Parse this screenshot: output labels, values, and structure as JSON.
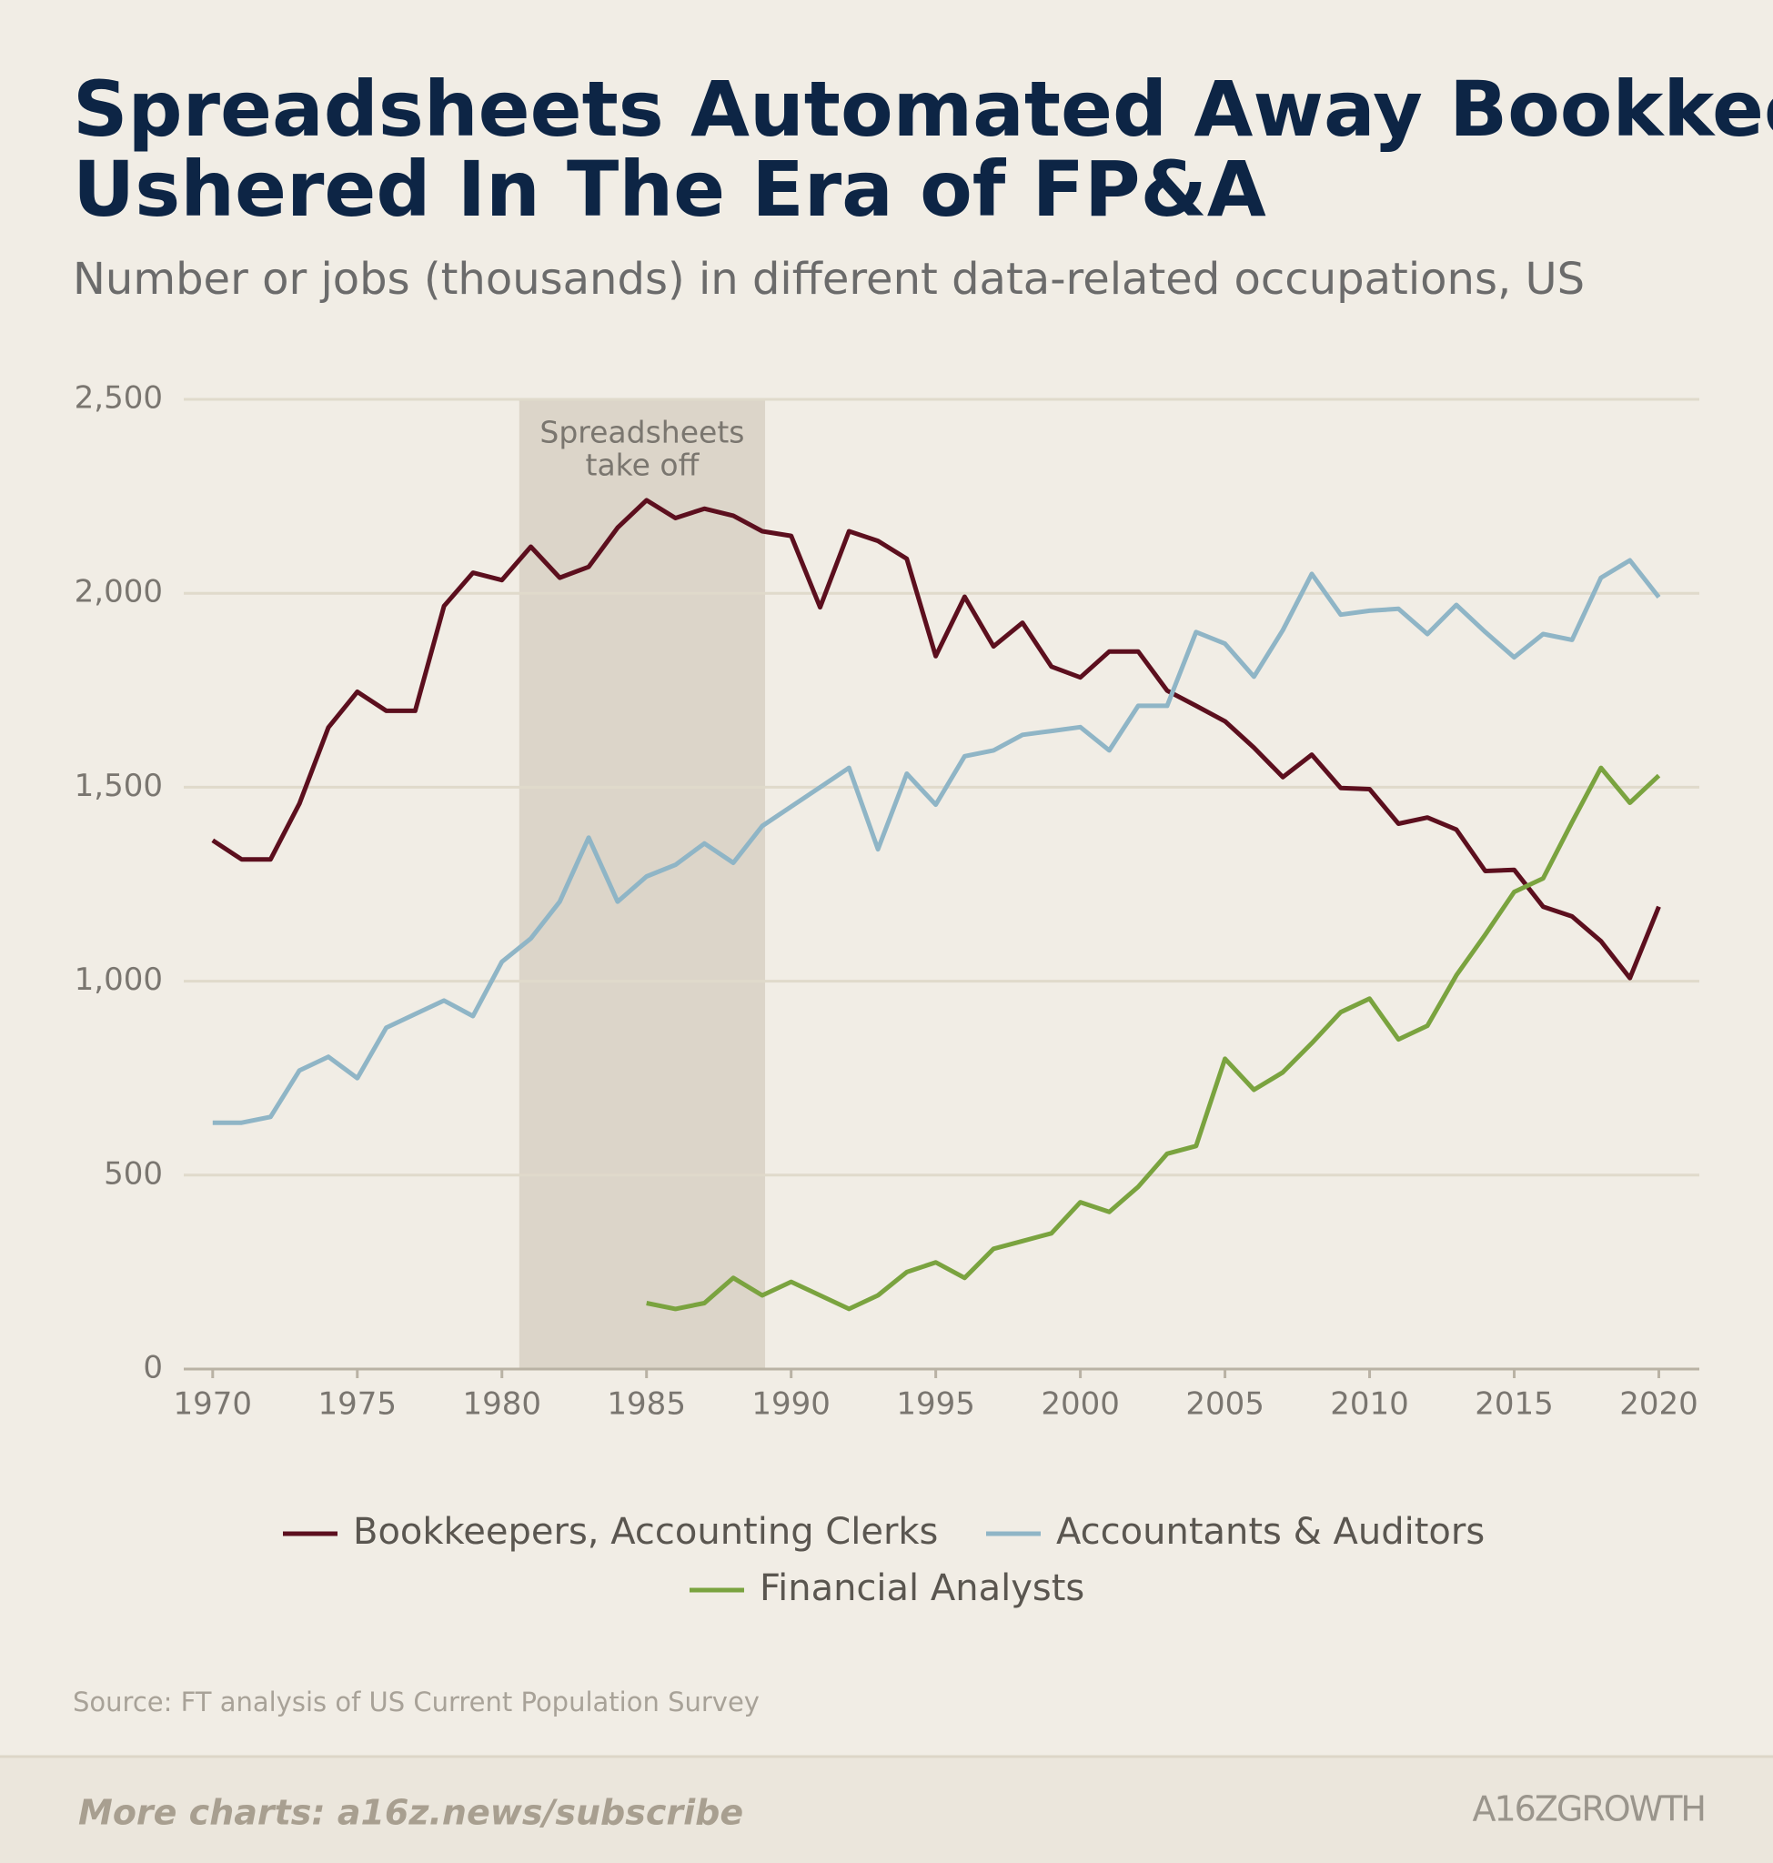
{
  "chart_data": {
    "type": "line",
    "title": [
      "Spreadsheets Automated Away Bookkeepers, And",
      "Ushered In The Era of FP&A"
    ],
    "subtitle": "Number or jobs (thousands) in different data-related occupations, US",
    "x": [
      1970,
      1971,
      1972,
      1973,
      1974,
      1975,
      1976,
      1977,
      1978,
      1979,
      1980,
      1981,
      1982,
      1983,
      1984,
      1985,
      1986,
      1987,
      1988,
      1989,
      1990,
      1991,
      1992,
      1993,
      1994,
      1995,
      1996,
      1997,
      1998,
      1999,
      2000,
      2001,
      2002,
      2003,
      2004,
      2005,
      2006,
      2007,
      2008,
      2009,
      2010,
      2011,
      2012,
      2013,
      2014,
      2015,
      2016,
      2017,
      2018,
      2019,
      2020
    ],
    "series": [
      {
        "name": "Bookkeepers, Accounting Clerks",
        "color": "#5c0f1e",
        "values": [
          1363,
          1314,
          1314,
          1458,
          1654,
          1746,
          1697,
          1697,
          1967,
          2053,
          2034,
          2120,
          2040,
          2068,
          2169,
          2240,
          2194,
          2218,
          2200,
          2160,
          2148,
          1964,
          2160,
          2135,
          2089,
          1838,
          1991,
          1863,
          1924,
          1811,
          1783,
          1850,
          1850,
          1749,
          1710,
          1670,
          1602,
          1526,
          1584,
          1498,
          1495,
          1406,
          1422,
          1391,
          1284,
          1287,
          1192,
          1167,
          1103,
          1008,
          1192
        ]
      },
      {
        "name": "Accountants & Auditors",
        "color": "#8fb5c6",
        "values": [
          635,
          635,
          650,
          770,
          805,
          750,
          880,
          915,
          950,
          910,
          1050,
          1110,
          1205,
          1370,
          1205,
          1270,
          1300,
          1355,
          1305,
          1400,
          1450,
          1500,
          1550,
          1340,
          1535,
          1455,
          1580,
          1595,
          1635,
          1645,
          1655,
          1595,
          1710,
          1710,
          1900,
          1870,
          1785,
          1905,
          2050,
          1945,
          1955,
          1960,
          1895,
          1970,
          1900,
          1835,
          1895,
          1880,
          2040,
          2085,
          1990
        ]
      },
      {
        "name": "Financial Analysts",
        "color": "#7aa33f",
        "values": [
          null,
          null,
          null,
          null,
          null,
          null,
          null,
          null,
          null,
          null,
          null,
          null,
          null,
          null,
          null,
          170,
          155,
          170,
          235,
          190,
          225,
          190,
          155,
          190,
          250,
          275,
          235,
          310,
          330,
          350,
          430,
          405,
          470,
          555,
          575,
          800,
          720,
          765,
          840,
          920,
          955,
          850,
          885,
          1015,
          1120,
          1230,
          1265,
          1410,
          1550,
          1460,
          1530
        ]
      }
    ],
    "xlim": [
      1969,
      2021.4
    ],
    "xticks": [
      1970,
      1975,
      1980,
      1985,
      1990,
      1995,
      2000,
      2005,
      2010,
      2015,
      2020
    ],
    "ylim": [
      0,
      2500
    ],
    "yticks": [
      0,
      500,
      {
        "value": 1000,
        "label": "1,000"
      },
      {
        "value": 1500,
        "label": "1,500"
      },
      {
        "value": 2000,
        "label": "2,000"
      },
      {
        "value": 2500,
        "label": "2,500"
      }
    ],
    "grid": true,
    "annotation": {
      "lines": [
        "Spreadsheets",
        "take off"
      ],
      "x_range": [
        1980.6,
        1989.1
      ],
      "color": "#dcd5c9"
    },
    "source": "Source: FT analysis of US Current Population Survey"
  },
  "footer": {
    "link": "More charts: a16z.news/subscribe",
    "logo": "A16ZGROWTH"
  }
}
